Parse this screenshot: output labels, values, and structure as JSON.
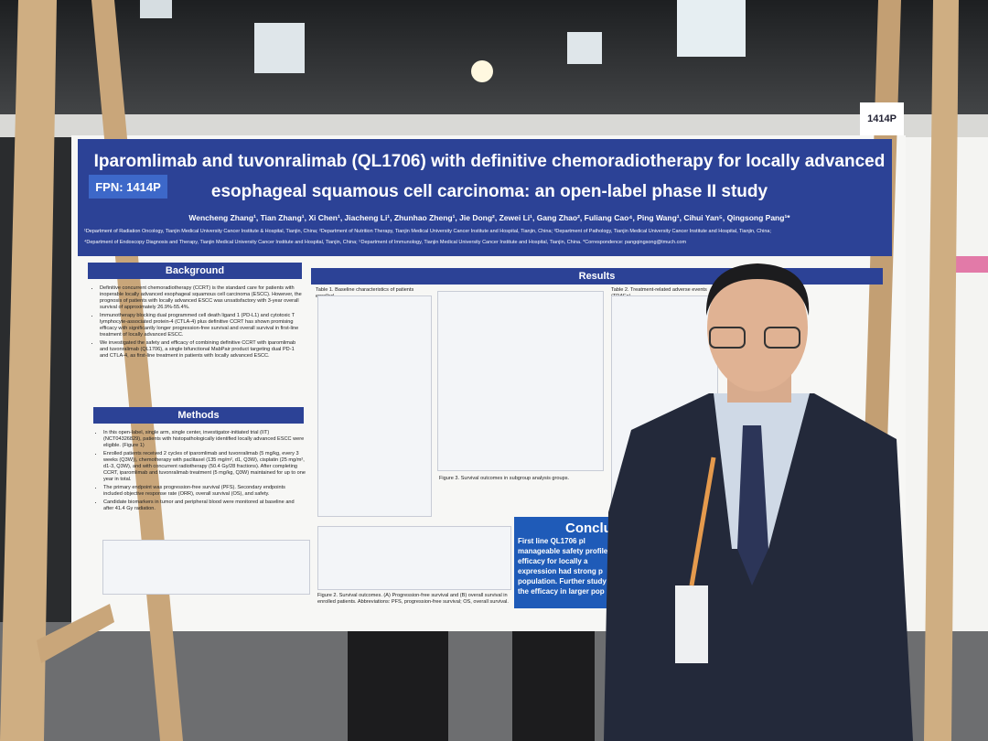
{
  "board_number": "1414P",
  "poster": {
    "fpn": "FPN: 1414P",
    "title_line1": "Iparomlimab and tuvonralimab (QL1706) with definitive chemoradiotherapy for locally advanced",
    "title_line2": "esophageal squamous cell carcinoma: an open-label phase II study",
    "authors": "Wencheng Zhang¹, Tian Zhang¹, Xi Chen¹, Jiacheng Li¹, Zhunhao Zheng¹, Jie Dong², Zewei Li¹, Gang Zhao², Fuliang Cao⁴, Ping Wang¹, Cihui Yan⁵, Qingsong Pang¹*",
    "affiliations1": "¹Department of Radiation Oncology, Tianjin Medical University Cancer Institute & Hospital, Tianjin, China; ²Department of Nutrition Therapy, Tianjin Medical University Cancer Institute and Hospital, Tianjin, China; ³Department of Pathology, Tianjin Medical University Cancer Institute and Hospital, Tianjin, China;",
    "affiliations2": "⁴Department of Endoscopy Diagnosis and Therapy, Tianjin Medical University Cancer Institute and Hospital, Tianjin, China; ⁵Department of Immunology, Tianjin Medical University Cancer Institute and Hospital, Tianjin, China. *Correspondence: pangqingsong@tmuch.com",
    "background": {
      "header": "Background",
      "bullets": [
        "Definitive concurrent chemoradiotherapy (CCRT) is the standard care for patients with inoperable locally advanced esophageal squamous cell carcinoma (ESCC). However, the prognosis of patients with locally advanced ESCC was unsatisfactory with 3-year overall survival of approximately 26.9%-55.4%.",
        "Immunotherapy blocking dual programmed cell death ligand 1 (PD-L1) and cytotoxic T lymphocyte-associated protein-4 (CTLA-4) plus definitive CCRT has shown promising efficacy with significantly longer progression-free survival and overall survival in first-line treatment of locally advanced ESCC.",
        "We investigated the safety and efficacy of combining definitive CCRT with iparomlimab and tuvonralimab (QL1706), a single bifunctional MabPair product targeting dual PD-1 and CTLA-4, as first-line treatment in patients with locally advanced ESCC."
      ]
    },
    "methods": {
      "header": "Methods",
      "bullets": [
        "In this open-label, single arm, single center, investigator-initiated trial (IIT) (NCT04326829), patients with histopathologically identified locally advanced ESCC were eligible. (Figure 1)",
        "Enrolled patients received 2 cycles of iparomlimab and tuvonralimab (5 mg/kg, every 3 weeks (Q3W)), chemotherapy with paclitaxel (135 mg/m², d1, Q3W), cisplatin (25 mg/m², d1-3, Q3W), and with concurrent radiotherapy (50.4 Gy/28 fractions). After completing CCRT, iparomlimab and tuvonralimab treatment (5 mg/kg, Q3W) maintained for up to one year in total.",
        "The primary endpoint was progression-free survival (PFS). Secondary endpoints included objective response rate (ORR), overall survival (OS), and safety.",
        "Candidate biomarkers in tumor and peripheral blood were monitored at baseline and after 41.4 Gy radiation."
      ]
    },
    "results": {
      "header": "Results",
      "table1_caption": "Table 1. Baseline characteristics of patients enrolled",
      "table2_caption": "Table 2. Treatment-related adverse events (TRAEs)",
      "figure3_caption": "Figure 3. Survival outcomes in subgroup analysis groups.",
      "figure2_caption": "Figure 2. Survival outcomes. (A) Progression-free survival and (B) overall survival in enrolled patients. Abbreviations: PFS, progression-free survival; OS, overall survival."
    },
    "conclusion": {
      "header": "Conclu",
      "lines": [
        "First line QL1706 pl",
        "manageable safety profile",
        "efficacy for locally a",
        "expression had strong p",
        "population. Further study",
        "the efficacy in larger pop"
      ]
    }
  }
}
